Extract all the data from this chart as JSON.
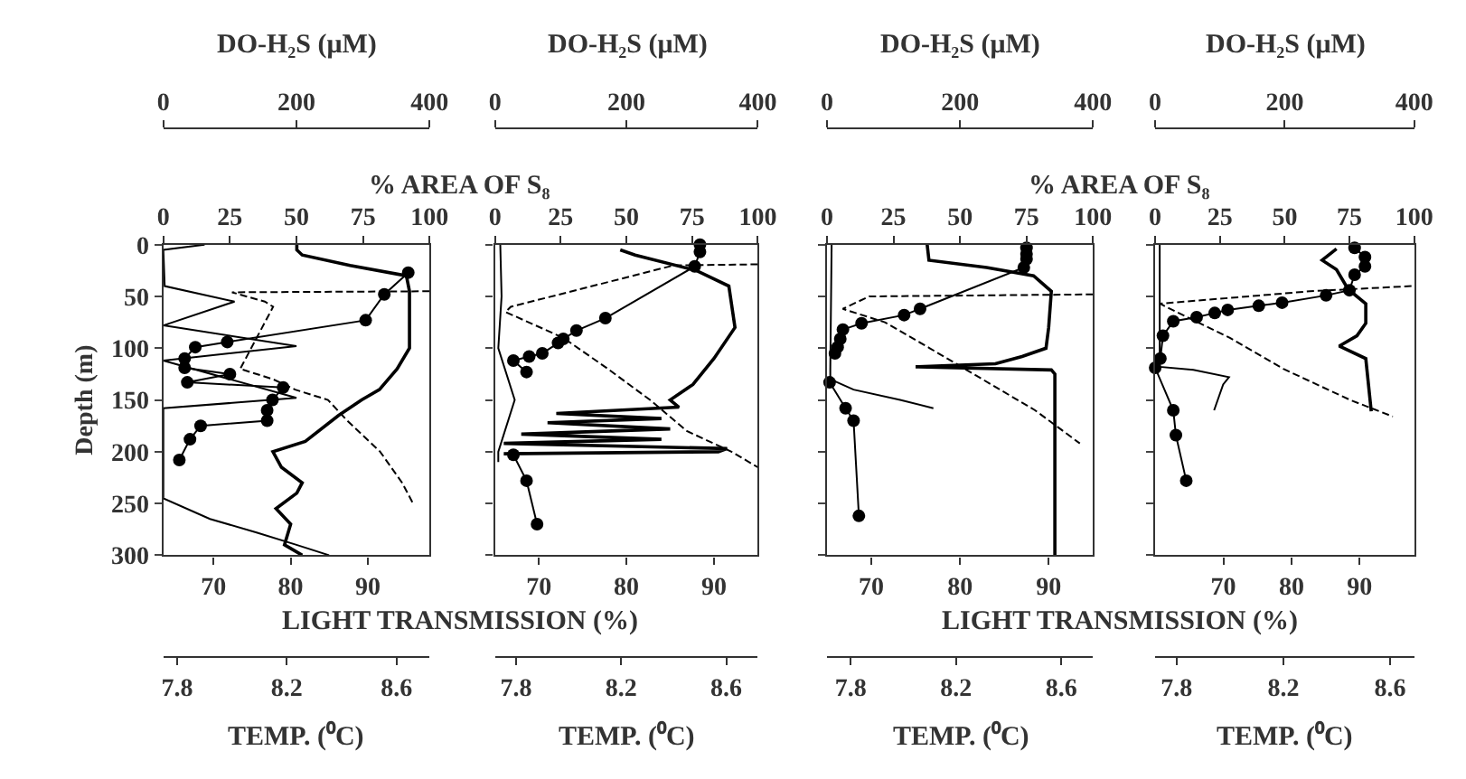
{
  "chart_data": [
    {
      "type": "line",
      "ylabel": "Depth (m)",
      "xlabel": "LIGHT TRANSMISSION (%)",
      "x2label": "% AREA OF S₈",
      "xlim": [
        63.5,
        98
      ],
      "xticks": [
        70,
        80,
        90
      ],
      "x2lim": [
        0,
        100
      ],
      "x2ticks": [
        0,
        25,
        50,
        75,
        100
      ],
      "ylim": [
        300,
        0
      ],
      "yticks": [
        0,
        50,
        100,
        150,
        200,
        250,
        300
      ],
      "series": [
        {
          "color": "#000000",
          "marker": "none",
          "line_style": "solid",
          "x": [
            80.8,
            80.8,
            81.5,
            87.7,
            95,
            95.4,
            95.4,
            93.8,
            91.5,
            89.2,
            86.2,
            81.9,
            77.7,
            78.8,
            81.5,
            80.8,
            78.1,
            80,
            79.2,
            81.5
          ],
          "values": [
            0,
            5,
            10,
            20,
            30,
            45,
            100,
            120,
            140,
            150,
            165,
            190,
            200,
            215,
            230,
            240,
            255,
            270,
            290,
            300
          ]
        },
        {
          "axis": "x2",
          "color": "#000000",
          "marker": "circle",
          "line_style": "solid",
          "x": [
            92,
            83,
            76,
            24,
            12,
            8,
            8,
            25,
            9,
            45,
            41,
            39,
            39,
            14,
            10,
            6
          ],
          "values": [
            27,
            48,
            73,
            94,
            99,
            110,
            119,
            125,
            133,
            138,
            150,
            160,
            170,
            175,
            188,
            208
          ]
        }
      ]
    },
    {
      "type": "line",
      "xlabel": "TEMP. (⁰C)",
      "x2label": "DO-H₂S (μM)",
      "tick_labels": "x",
      "xlim": [
        7.75,
        8.72
      ],
      "xticks": [
        7.8,
        8.2,
        8.6
      ],
      "x2lim": [
        0,
        400
      ],
      "x2ticks": [
        0,
        200,
        400
      ],
      "ylim": [
        300,
        0
      ],
      "series": [
        {
          "color": "#000000",
          "marker": "none",
          "line_style": "dashed",
          "x": [
            8.72,
            8.0,
            8.12,
            8.15,
            8.03,
            8.15,
            8.23,
            8.35,
            8.42,
            8.54,
            8.62,
            8.66
          ],
          "values": [
            45,
            46,
            55,
            60,
            120,
            130,
            140,
            150,
            170,
            200,
            230,
            250
          ]
        },
        {
          "axis": "x2",
          "color": "#000000",
          "marker": "none",
          "line_style": "solid",
          "x": [
            62,
            0,
            2,
            107,
            0,
            200,
            0,
            200,
            0,
            0,
            0,
            70,
            140,
            200,
            249
          ],
          "values": [
            0,
            5,
            40,
            55,
            78,
            98,
            112,
            148,
            158,
            200,
            245,
            265,
            278,
            290,
            300
          ]
        }
      ]
    },
    {
      "type": "line",
      "tick_labels": "x",
      "xlim": [
        65,
        95
      ],
      "xticks": [
        70,
        80,
        90
      ],
      "x2lim": [
        0,
        100
      ],
      "x2ticks": [
        0,
        25,
        50,
        75,
        100
      ],
      "ylim": [
        300,
        0
      ],
      "yticks": [
        0,
        50,
        100,
        150,
        200,
        250,
        300
      ],
      "series": [
        {
          "color": "#000000",
          "marker": "none",
          "line_style": "solid",
          "x": [
            79.3,
            81,
            88,
            91.7,
            92.4,
            90,
            87.6,
            85,
            86,
            72,
            84,
            71,
            85,
            68,
            84,
            66,
            91.5,
            90.5,
            66
          ],
          "values": [
            5,
            10,
            25,
            40,
            80,
            110,
            135,
            150,
            157,
            163,
            168,
            172,
            178,
            183,
            188,
            192,
            197,
            200,
            202
          ]
        },
        {
          "axis": "x2",
          "color": "#000000",
          "marker": "circle",
          "line_style": "solid",
          "x": [
            78,
            78,
            76,
            42,
            31,
            26,
            24,
            18,
            13,
            7,
            12
          ],
          "values": [
            0,
            7,
            21,
            71,
            83,
            91,
            95,
            105,
            108,
            112,
            123
          ]
        },
        {
          "axis": "x2",
          "color": "#000000",
          "marker": "circle",
          "line_style": "solid",
          "x": [
            7,
            12,
            16
          ],
          "values": [
            203,
            228,
            270
          ]
        }
      ]
    },
    {
      "type": "line",
      "xlabel": "TEMP. (⁰C)",
      "x2label": "DO-H₂S (μM)",
      "tick_labels": "x",
      "xlim": [
        7.72,
        8.72
      ],
      "xticks": [
        7.8,
        8.2,
        8.6
      ],
      "x2lim": [
        0,
        400
      ],
      "x2ticks": [
        0,
        200,
        400
      ],
      "ylim": [
        300,
        0
      ],
      "series": [
        {
          "color": "#000000",
          "marker": "none",
          "line_style": "dashed",
          "x": [
            8.72,
            8.4,
            7.78,
            7.76,
            7.98,
            8.15,
            8.31,
            8.45,
            8.62,
            8.72
          ],
          "values": [
            19,
            20,
            60,
            65,
            90,
            120,
            150,
            180,
            200,
            215
          ]
        },
        {
          "axis": "x2",
          "color": "#000000",
          "marker": "none",
          "line_style": "solid",
          "x": [
            8,
            10,
            5,
            30,
            5,
            5
          ],
          "values": [
            0,
            50,
            100,
            150,
            200,
            210
          ]
        }
      ]
    },
    {
      "type": "line",
      "xlabel": "LIGHT TRANSMISSION (%)",
      "x2label": "% AREA OF S₈",
      "tick_labels": "x",
      "xlim": [
        65,
        95
      ],
      "xticks": [
        70,
        80,
        90
      ],
      "x2lim": [
        0,
        100
      ],
      "x2ticks": [
        0,
        25,
        50,
        75,
        100
      ],
      "ylim": [
        300,
        0
      ],
      "yticks": [
        0,
        50,
        100,
        150,
        200,
        250,
        300
      ],
      "series": [
        {
          "color": "#000000",
          "marker": "none",
          "line_style": "solid",
          "x": [
            76.3,
            76.5,
            83,
            88.3,
            90.3,
            90,
            89.7,
            87,
            84,
            75,
            90.3,
            90.7,
            90.7
          ],
          "values": [
            0,
            15,
            22,
            30,
            45,
            80,
            100,
            108,
            115,
            118,
            121,
            125,
            300
          ]
        },
        {
          "axis": "x2",
          "color": "#000000",
          "marker": "circle",
          "line_style": "solid",
          "x": [
            75,
            75,
            75,
            74,
            35,
            29,
            13,
            6,
            5,
            4,
            3
          ],
          "values": [
            3,
            9,
            14,
            22,
            62,
            68,
            76,
            82,
            91,
            99,
            105
          ]
        },
        {
          "axis": "x2",
          "color": "#000000",
          "marker": "circle",
          "line_style": "solid",
          "x": [
            1,
            7,
            10,
            12
          ],
          "values": [
            133,
            158,
            170,
            262
          ]
        }
      ]
    },
    {
      "type": "line",
      "xlabel": "TEMP. (⁰C)",
      "x2label": "DO-H₂S (μM)",
      "tick_labels": "x",
      "xlim": [
        7.71,
        8.72
      ],
      "xticks": [
        7.8,
        8.2,
        8.6
      ],
      "x2lim": [
        0,
        400
      ],
      "x2ticks": [
        0,
        200,
        400
      ],
      "ylim": [
        300,
        0
      ],
      "series": [
        {
          "color": "#000000",
          "marker": "none",
          "line_style": "dashed",
          "x": [
            8.72,
            7.87,
            7.77,
            7.93,
            8.1,
            8.3,
            8.5,
            8.67
          ],
          "values": [
            48,
            50,
            62,
            75,
            100,
            130,
            160,
            192
          ]
        },
        {
          "axis": "x2",
          "color": "#000000",
          "marker": "none",
          "line_style": "solid",
          "x": [
            7,
            5,
            5,
            40,
            110,
            160
          ],
          "values": [
            0,
            120,
            130,
            140,
            150,
            158
          ]
        }
      ]
    },
    {
      "type": "line",
      "tick_labels": "x",
      "xlim": [
        60,
        98
      ],
      "xticks": [
        70,
        80,
        90
      ],
      "x2lim": [
        0,
        100
      ],
      "x2ticks": [
        0,
        25,
        50,
        75,
        100
      ],
      "ylim": [
        300,
        0
      ],
      "yticks": [
        0,
        50,
        100,
        150,
        200,
        250,
        300
      ],
      "series": [
        {
          "color": "#000000",
          "marker": "none",
          "line_style": "solid",
          "x": [
            86.6,
            84.5,
            86.6,
            88.3,
            90.9,
            90.9,
            89.6,
            87,
            90.9,
            91.7
          ],
          "values": [
            4,
            15,
            24,
            43,
            57,
            76,
            88,
            98,
            110,
            161
          ]
        },
        {
          "axis": "x2",
          "color": "#000000",
          "marker": "circle",
          "line_style": "solid",
          "x": [
            77,
            81,
            81,
            77,
            75,
            66,
            49,
            40,
            28,
            23,
            16,
            7,
            3,
            2
          ],
          "values": [
            3,
            12,
            21,
            29,
            44,
            49,
            56,
            59,
            63,
            66,
            70,
            74,
            88,
            110
          ]
        },
        {
          "axis": "x2",
          "color": "#000000",
          "marker": "circle",
          "line_style": "solid",
          "x": [
            0,
            7,
            8,
            12
          ],
          "values": [
            119,
            160,
            184,
            228
          ]
        }
      ]
    },
    {
      "type": "line",
      "xlabel": "TEMP. (⁰C)",
      "x2label": "DO-H₂S (μM)",
      "tick_labels": "x",
      "xlim": [
        7.72,
        8.69
      ],
      "xticks": [
        7.8,
        8.2,
        8.6
      ],
      "x2lim": [
        0,
        400
      ],
      "x2ticks": [
        0,
        200,
        400
      ],
      "ylim": [
        300,
        0
      ],
      "series": [
        {
          "color": "#000000",
          "marker": "none",
          "line_style": "dashed",
          "x": [
            8.68,
            8.3,
            7.74,
            7.76,
            8.0,
            8.2,
            8.45,
            8.61
          ],
          "values": [
            40,
            45,
            57,
            60,
            90,
            120,
            150,
            166
          ]
        },
        {
          "axis": "x2",
          "color": "#000000",
          "marker": "none",
          "line_style": "solid",
          "x": [
            7,
            7,
            59,
            114,
            105,
            91
          ],
          "values": [
            0,
            118,
            121,
            128,
            135,
            160
          ]
        }
      ]
    }
  ]
}
